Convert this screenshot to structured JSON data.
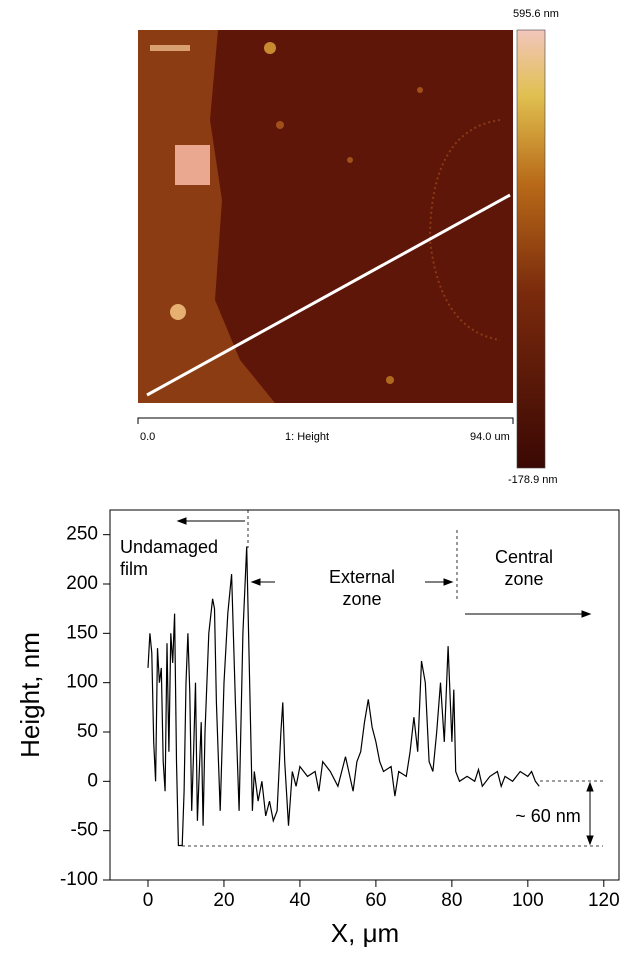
{
  "afm_image": {
    "colorbar_max": "595.6 nm",
    "colorbar_min": "-178.9 nm",
    "scale_start": "0.0",
    "channel": "1: Height",
    "scale_end": "94.0 um"
  },
  "chart_data": {
    "type": "line",
    "x_label": "X, μm",
    "y_label": "Height, nm",
    "xlim": [
      -10,
      124
    ],
    "ylim": [
      -100,
      275
    ],
    "xticks": [
      0,
      20,
      40,
      60,
      80,
      100,
      120
    ],
    "yticks": [
      -100,
      -50,
      0,
      50,
      100,
      150,
      200,
      250
    ],
    "annotations": [
      {
        "lines": [
          "Undamaged",
          "film"
        ]
      },
      {
        "lines": [
          "External",
          "zone"
        ]
      },
      {
        "lines": [
          "Central",
          "zone"
        ]
      },
      {
        "lines": [
          "~ 60 nm"
        ]
      }
    ],
    "series": [
      {
        "color": "#000000",
        "x": [
          0,
          0.5,
          1,
          1.5,
          2,
          2.5,
          3,
          3.5,
          4,
          4.5,
          5,
          5.5,
          6,
          6.5,
          7,
          7.5,
          8,
          9,
          9.5,
          10,
          10.5,
          11,
          11.5,
          12,
          12.5,
          13,
          14,
          14.5,
          15,
          16,
          17,
          17.5,
          18,
          19,
          20,
          21,
          22,
          23,
          24,
          25,
          26,
          27,
          27.5,
          28,
          29,
          30,
          31,
          32,
          33,
          34,
          35,
          35.5,
          36,
          37,
          38,
          39,
          40,
          42,
          44,
          45,
          46,
          48,
          50,
          52,
          54,
          55,
          56,
          57,
          58,
          59,
          60,
          61,
          62,
          64,
          65,
          66,
          68,
          69,
          70,
          71,
          72,
          73,
          74,
          75,
          76,
          77,
          78,
          79,
          80,
          80.5,
          81,
          82,
          84,
          86,
          87,
          88,
          90,
          92,
          93,
          94,
          96,
          98,
          100,
          101,
          102,
          103
        ],
        "values": [
          115,
          150,
          130,
          40,
          0,
          135,
          100,
          115,
          20,
          -10,
          140,
          30,
          150,
          120,
          170,
          20,
          -65,
          -65,
          -10,
          100,
          150,
          90,
          -30,
          30,
          100,
          -40,
          60,
          -45,
          50,
          150,
          185,
          175,
          80,
          -30,
          100,
          170,
          210,
          80,
          -30,
          150,
          238,
          60,
          -30,
          10,
          -20,
          0,
          -35,
          -20,
          -40,
          -30,
          50,
          80,
          20,
          -45,
          10,
          -5,
          15,
          5,
          10,
          -10,
          20,
          10,
          -5,
          25,
          -10,
          20,
          30,
          60,
          83,
          55,
          40,
          20,
          10,
          15,
          -15,
          10,
          5,
          30,
          65,
          30,
          122,
          100,
          20,
          10,
          50,
          100,
          40,
          137,
          40,
          93,
          10,
          0,
          5,
          0,
          12,
          -5,
          5,
          10,
          -5,
          5,
          0,
          10,
          5,
          10,
          0,
          -5
        ]
      }
    ]
  }
}
